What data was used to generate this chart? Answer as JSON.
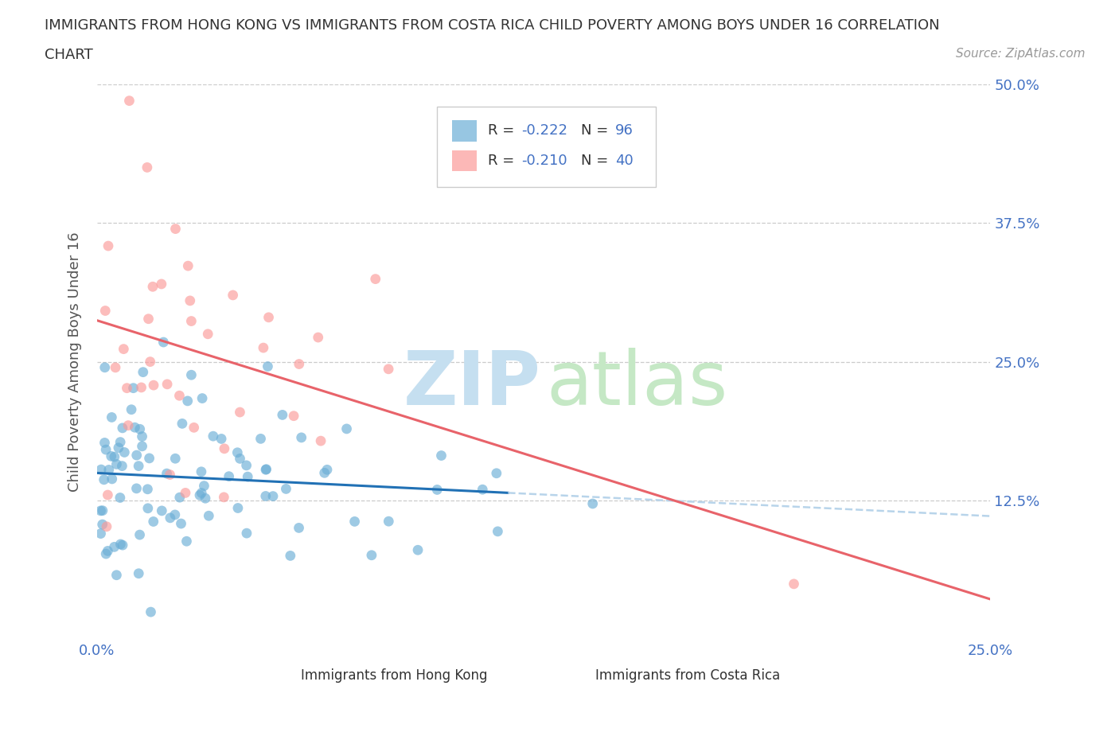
{
  "title_line1": "IMMIGRANTS FROM HONG KONG VS IMMIGRANTS FROM COSTA RICA CHILD POVERTY AMONG BOYS UNDER 16 CORRELATION",
  "title_line2": "CHART",
  "source": "Source: ZipAtlas.com",
  "ylabel": "Child Poverty Among Boys Under 16",
  "legend_r1": "-0.222",
  "legend_n1": "96",
  "legend_r2": "-0.210",
  "legend_n2": "40",
  "color_hk": "#6baed6",
  "color_cr": "#fb9a99",
  "color_hk_line": "#2171b5",
  "color_cr_line": "#e8636a",
  "color_hk_dashed": "#b8d4ea",
  "background_color": "#ffffff",
  "grid_color": "#cccccc",
  "title_color": "#333333",
  "axis_label_color": "#555555",
  "tick_color": "#4472c4",
  "source_color": "#999999",
  "watermark_zip_color": "#c5dff0",
  "watermark_atlas_color": "#c5e8c5"
}
